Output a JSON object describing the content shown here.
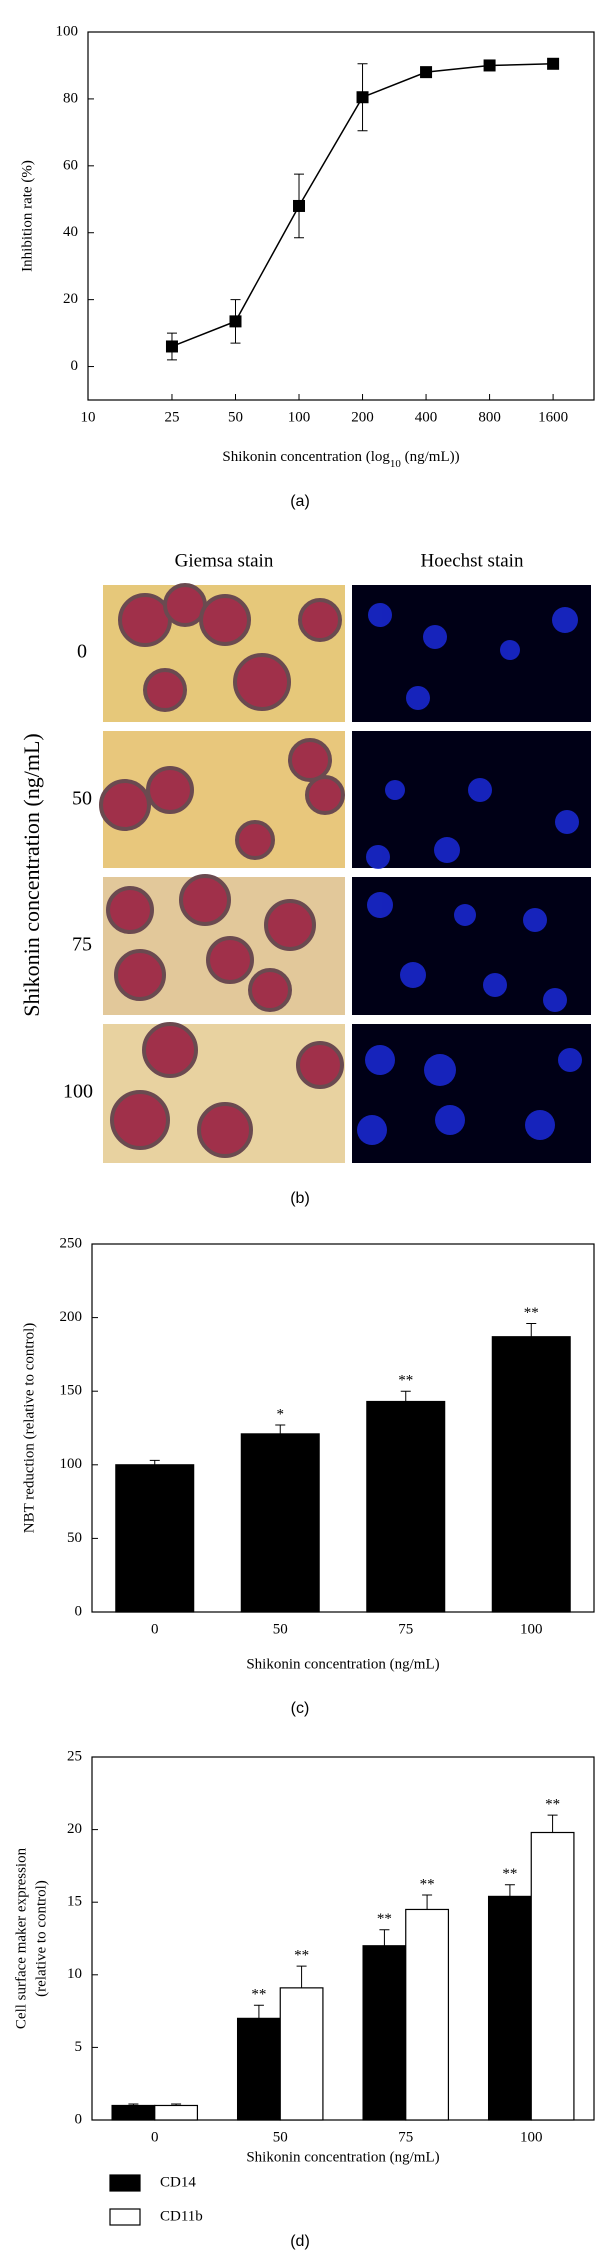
{
  "chart_data": [
    {
      "type": "line",
      "xscale": "log",
      "xlabel": {
        "text": "Shikonin concentration (log",
        "sub": "10",
        "after": " (ng/mL))"
      },
      "ylabel": "Inhibition rate (%)",
      "x": [
        25,
        50,
        100,
        200,
        400,
        800,
        1600
      ],
      "series": [
        {
          "color": "#000000",
          "values": [
            6,
            13.5,
            48,
            80.5,
            88,
            90,
            90.5
          ],
          "errors": [
            4,
            6.5,
            9.5,
            10,
            1.5,
            1,
            0.8
          ]
        }
      ],
      "xlim": [
        10,
        2500
      ],
      "xticks": [
        10,
        25,
        50,
        100,
        200,
        400,
        800,
        1600
      ],
      "ylim": [
        -10,
        100
      ],
      "yticks": [
        0,
        20,
        40,
        60,
        80,
        100
      ]
    },
    {
      "type": "bar",
      "xlabel": "Shikonin concentration (ng/mL)",
      "ylabel": "NBT reduction (relative to control)",
      "categories": [
        "0",
        "50",
        "75",
        "100"
      ],
      "series": [
        {
          "color": "#000000",
          "values": [
            100,
            121,
            143,
            187
          ],
          "errors": [
            3,
            6,
            7,
            9
          ],
          "annotations": [
            null,
            "*",
            "**",
            "**"
          ]
        }
      ],
      "ylim": [
        0,
        250
      ],
      "yticks": [
        0,
        50,
        100,
        150,
        200,
        250
      ]
    },
    {
      "type": "bar",
      "xlabel": "Shikonin concentration (ng/mL)",
      "ylabel": [
        "Cell surface maker expression",
        "(relative to control)"
      ],
      "categories": [
        "0",
        "50",
        "75",
        "100"
      ],
      "series": [
        {
          "name": "CD14",
          "color": "#000000",
          "values": [
            1,
            7,
            12,
            15.4
          ],
          "errors": [
            0.1,
            0.9,
            1.1,
            0.8
          ],
          "annotations": [
            null,
            "**",
            "**",
            "**"
          ]
        },
        {
          "name": "CD11b",
          "color": "#ffffff",
          "values": [
            1,
            9.1,
            14.5,
            19.8
          ],
          "errors": [
            0.1,
            1.5,
            1,
            1.2
          ],
          "annotations": [
            null,
            "**",
            "**",
            "**"
          ]
        }
      ],
      "ylim": [
        0,
        25
      ],
      "yticks": [
        0,
        5,
        10,
        15,
        20,
        25
      ],
      "legend": "below"
    }
  ],
  "figure_b": {
    "columns": [
      "Giemsa stain",
      "Hoechst stain"
    ],
    "rows": [
      "0",
      "50",
      "75",
      "100"
    ],
    "ylabel": "Shikonin concentration (ng/mL)"
  },
  "panel_labels": [
    "(a)",
    "(b)",
    "(c)",
    "(d)"
  ]
}
